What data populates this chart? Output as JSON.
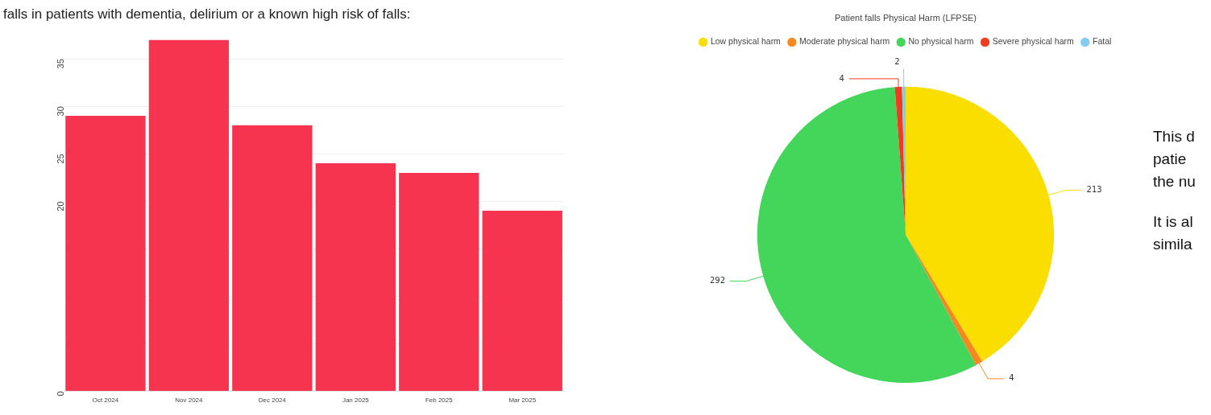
{
  "chart_data": [
    {
      "type": "bar",
      "title": "falls in patients with dementia, delirium or a known high risk of falls:",
      "categories": [
        "Oct 2024",
        "Nov 2024",
        "Dec 2024",
        "Jan 2025",
        "Feb 2025",
        "Mar 2025"
      ],
      "values": [
        29,
        37,
        28,
        24,
        23,
        19
      ],
      "color": "#f7344f",
      "ylim": [
        0,
        37
      ],
      "yticks": [
        0,
        {
          "value": 5,
          "label": null
        },
        {
          "value": 10,
          "label": null
        },
        {
          "value": 15,
          "label": null
        },
        20,
        25,
        30,
        35
      ],
      "grid": "y",
      "legend": false
    },
    {
      "type": "pie",
      "title": "Patient falls Physical Harm (LFPSE)",
      "categories": [
        "Low physical harm",
        "Moderate physical harm",
        "No physical harm",
        "Severe physical harm",
        "Fatal"
      ],
      "values": [
        213,
        4,
        292,
        4,
        2
      ],
      "colors": [
        "#f9de00",
        "#f5891f",
        "#43d65a",
        "#f23a1c",
        "#83cdf0"
      ],
      "data_labels": true,
      "legend": "top",
      "annotations": [
        "This d\npatie\nthe nu",
        "It is al\nsimila"
      ]
    }
  ]
}
